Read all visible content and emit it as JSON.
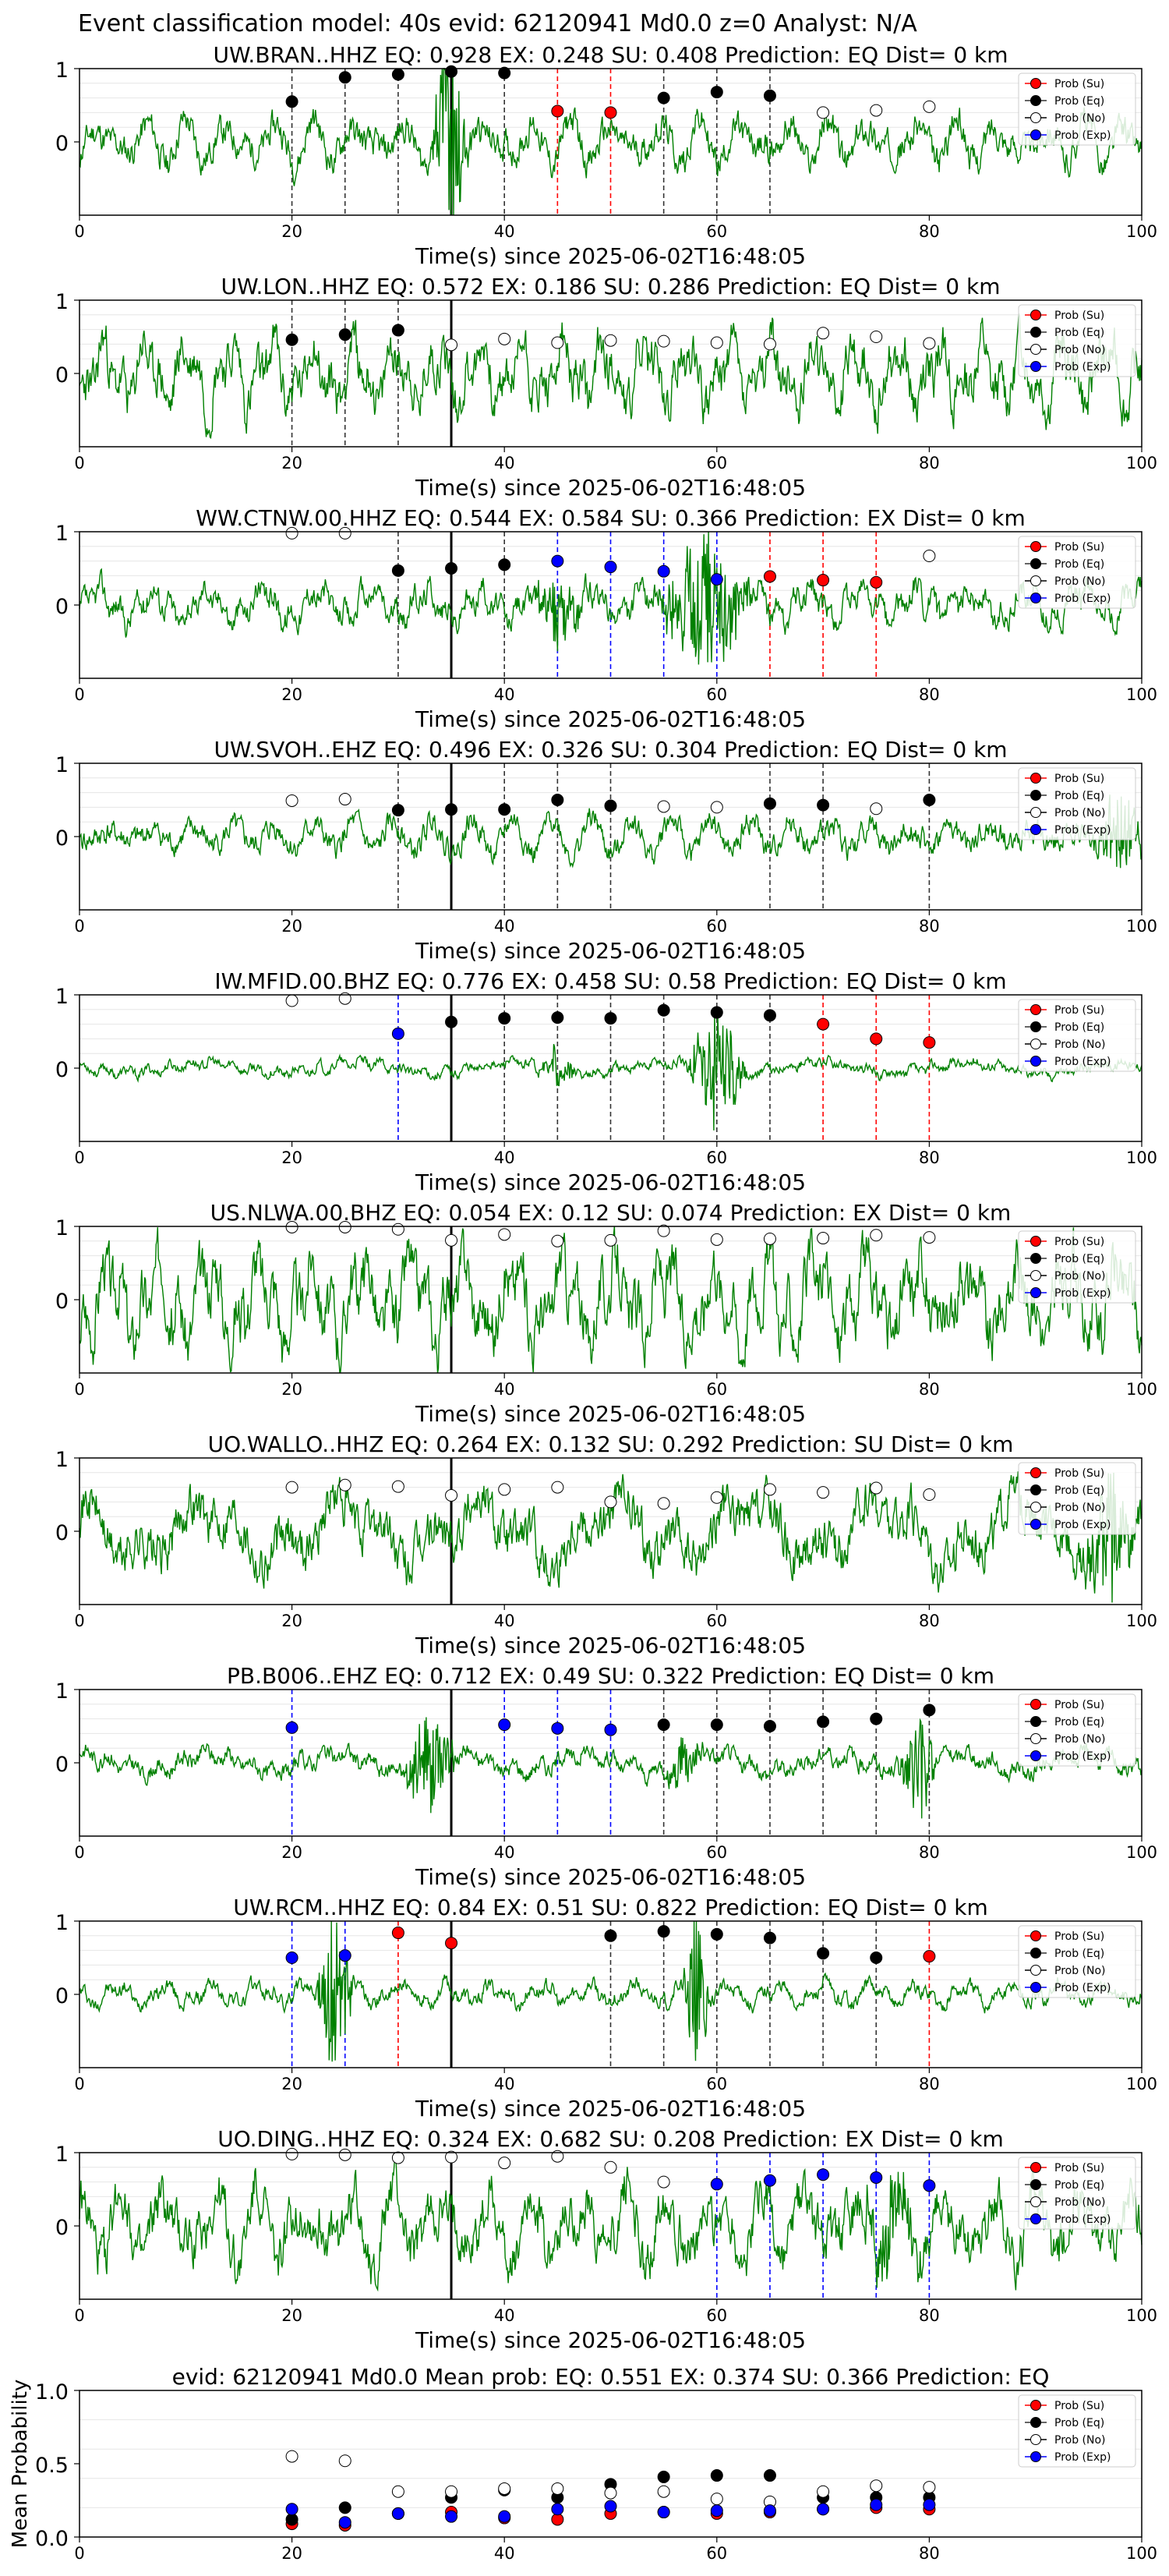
{
  "figure_title": "Event classification model: 40s evid: 62120941 Md0.0 z=0 Analyst: N/A",
  "xlabel": "Time(s) since 2025-06-02T16:48:05",
  "legend": [
    "Prob (Su)",
    "Prob (Eq)",
    "Prob (No)",
    "Prob (Exp)"
  ],
  "colors": {
    "su": "#ff0000",
    "eq": "#000000",
    "no": "#ffffff",
    "exp": "#0000ff",
    "trace": "#008000",
    "grid": "#e6e6e6"
  },
  "chart_data": [
    {
      "type": "line",
      "title": "UW.BRAN..HHZ   EQ: 0.928  EX: 0.248  SU: 0.408   Prediction: EQ    Dist= 0 km",
      "xlim": [
        0,
        100
      ],
      "ylim": [
        -1,
        1
      ],
      "xticks": [
        0,
        20,
        40,
        60,
        80,
        100
      ],
      "yticks": [
        1,
        0
      ],
      "origin": 35,
      "amp": 0.35,
      "seed": 11,
      "bursts": [
        [
          35,
          2,
          1.6
        ]
      ],
      "markers": [
        [
          20,
          "eq",
          0.55
        ],
        [
          25,
          "eq",
          0.88
        ],
        [
          30,
          "eq",
          0.92
        ],
        [
          35,
          "eq",
          0.96
        ],
        [
          40,
          "eq",
          0.94
        ],
        [
          45,
          "su",
          0.42
        ],
        [
          50,
          "su",
          0.4
        ],
        [
          55,
          "eq",
          0.6
        ],
        [
          60,
          "eq",
          0.68
        ],
        [
          65,
          "eq",
          0.63
        ],
        [
          70,
          "no",
          0.4
        ],
        [
          75,
          "no",
          0.43
        ],
        [
          80,
          "no",
          0.48
        ]
      ]
    },
    {
      "type": "line",
      "title": "UW.LON..HHZ   EQ: 0.572  EX: 0.186  SU: 0.286   Prediction: EQ    Dist= 0 km",
      "xlim": [
        0,
        100
      ],
      "ylim": [
        -1,
        1
      ],
      "xticks": [
        0,
        20,
        40,
        60,
        80,
        100
      ],
      "yticks": [
        1,
        0
      ],
      "origin": 35,
      "amp": 0.55,
      "seed": 23,
      "bursts": [],
      "markers": [
        [
          20,
          "eq",
          0.46
        ],
        [
          25,
          "eq",
          0.53
        ],
        [
          30,
          "eq",
          0.59
        ],
        [
          35,
          "no",
          0.39
        ],
        [
          40,
          "no",
          0.47
        ],
        [
          45,
          "no",
          0.42
        ],
        [
          50,
          "no",
          0.45
        ],
        [
          55,
          "no",
          0.44
        ],
        [
          60,
          "no",
          0.42
        ],
        [
          65,
          "no",
          0.4
        ],
        [
          70,
          "no",
          0.55
        ],
        [
          75,
          "no",
          0.5
        ],
        [
          80,
          "no",
          0.41
        ]
      ]
    },
    {
      "type": "line",
      "title": "WW.CTNW.00.HHZ   EQ: 0.544  EX: 0.584  SU: 0.366   Prediction: EX    Dist= 0 km",
      "xlim": [
        0,
        100
      ],
      "ylim": [
        -1,
        1
      ],
      "xticks": [
        0,
        20,
        40,
        60,
        80,
        100
      ],
      "yticks": [
        1,
        0
      ],
      "origin": 35,
      "amp": 0.3,
      "seed": 37,
      "bursts": [
        [
          59,
          5,
          1.0
        ],
        [
          45,
          3,
          0.5
        ]
      ],
      "markers": [
        [
          20,
          "no",
          0.98
        ],
        [
          25,
          "no",
          0.98
        ],
        [
          30,
          "eq",
          0.47
        ],
        [
          35,
          "eq",
          0.5
        ],
        [
          40,
          "eq",
          0.55
        ],
        [
          45,
          "exp",
          0.6
        ],
        [
          50,
          "exp",
          0.52
        ],
        [
          55,
          "exp",
          0.46
        ],
        [
          60,
          "exp",
          0.35
        ],
        [
          65,
          "su",
          0.39
        ],
        [
          70,
          "su",
          0.34
        ],
        [
          75,
          "su",
          0.31
        ],
        [
          80,
          "no",
          0.67
        ]
      ]
    },
    {
      "type": "line",
      "title": "UW.SVOH..EHZ   EQ: 0.496  EX: 0.326  SU: 0.304   Prediction: EQ    Dist= 0 km",
      "xlim": [
        0,
        100
      ],
      "ylim": [
        -1,
        1
      ],
      "xticks": [
        0,
        20,
        40,
        60,
        80,
        100
      ],
      "yticks": [
        1,
        0
      ],
      "origin": 35,
      "amp": 0.28,
      "seed": 41,
      "bursts": [
        [
          98,
          3,
          0.6
        ]
      ],
      "markers": [
        [
          20,
          "no",
          0.49
        ],
        [
          25,
          "no",
          0.51
        ],
        [
          30,
          "eq",
          0.36
        ],
        [
          35,
          "eq",
          0.37
        ],
        [
          40,
          "eq",
          0.37
        ],
        [
          45,
          "eq",
          0.5
        ],
        [
          50,
          "eq",
          0.42
        ],
        [
          55,
          "no",
          0.41
        ],
        [
          60,
          "no",
          0.4
        ],
        [
          65,
          "eq",
          0.45
        ],
        [
          70,
          "eq",
          0.43
        ],
        [
          75,
          "no",
          0.38
        ],
        [
          80,
          "eq",
          0.5
        ]
      ]
    },
    {
      "type": "line",
      "title": "IW.MFID.00.BHZ   EQ: 0.776  EX: 0.458  SU: 0.58   Prediction: EQ    Dist= 0 km",
      "xlim": [
        0,
        100
      ],
      "ylim": [
        -1,
        1
      ],
      "xticks": [
        0,
        20,
        40,
        60,
        80,
        100
      ],
      "yticks": [
        1,
        0
      ],
      "origin": 35,
      "amp": 0.12,
      "seed": 53,
      "bursts": [
        [
          60,
          3,
          1.0
        ],
        [
          45,
          2,
          0.3
        ]
      ],
      "markers": [
        [
          20,
          "no",
          0.92
        ],
        [
          25,
          "no",
          0.95
        ],
        [
          30,
          "exp",
          0.47
        ],
        [
          35,
          "eq",
          0.63
        ],
        [
          40,
          "eq",
          0.68
        ],
        [
          45,
          "eq",
          0.69
        ],
        [
          50,
          "eq",
          0.68
        ],
        [
          55,
          "eq",
          0.79
        ],
        [
          60,
          "eq",
          0.76
        ],
        [
          65,
          "eq",
          0.72
        ],
        [
          70,
          "su",
          0.6
        ],
        [
          75,
          "su",
          0.4
        ],
        [
          80,
          "su",
          0.35
        ]
      ]
    },
    {
      "type": "line",
      "title": "US.NLWA.00.BHZ   EQ: 0.054  EX: 0.12  SU: 0.074   Prediction: EX    Dist= 0 km",
      "xlim": [
        0,
        100
      ],
      "ylim": [
        -1,
        1
      ],
      "xticks": [
        0,
        20,
        40,
        60,
        80,
        100
      ],
      "yticks": [
        1,
        0
      ],
      "origin": 35,
      "amp": 0.7,
      "seed": 67,
      "bursts": [],
      "markers": [
        [
          20,
          "no",
          0.99
        ],
        [
          25,
          "no",
          0.99
        ],
        [
          30,
          "no",
          0.96
        ],
        [
          35,
          "no",
          0.81
        ],
        [
          40,
          "no",
          0.89
        ],
        [
          45,
          "no",
          0.8
        ],
        [
          50,
          "no",
          0.81
        ],
        [
          55,
          "no",
          0.94
        ],
        [
          60,
          "no",
          0.82
        ],
        [
          65,
          "no",
          0.83
        ],
        [
          70,
          "no",
          0.84
        ],
        [
          75,
          "no",
          0.88
        ],
        [
          80,
          "no",
          0.85
        ]
      ]
    },
    {
      "type": "line",
      "title": "UO.WALLO..HHZ   EQ: 0.264  EX: 0.132  SU: 0.292   Prediction: SU    Dist= 0 km",
      "xlim": [
        0,
        100
      ],
      "ylim": [
        -1,
        1
      ],
      "xticks": [
        0,
        20,
        40,
        60,
        80,
        100
      ],
      "yticks": [
        1,
        0
      ],
      "origin": 35,
      "amp": 0.55,
      "seed": 71,
      "bursts": [
        [
          97,
          3,
          0.9
        ]
      ],
      "markers": [
        [
          20,
          "no",
          0.6
        ],
        [
          25,
          "no",
          0.63
        ],
        [
          30,
          "no",
          0.61
        ],
        [
          35,
          "no",
          0.49
        ],
        [
          40,
          "no",
          0.57
        ],
        [
          45,
          "no",
          0.6
        ],
        [
          50,
          "no",
          0.4
        ],
        [
          55,
          "no",
          0.38
        ],
        [
          60,
          "no",
          0.46
        ],
        [
          65,
          "no",
          0.57
        ],
        [
          70,
          "no",
          0.53
        ],
        [
          75,
          "no",
          0.59
        ],
        [
          80,
          "no",
          0.5
        ]
      ]
    },
    {
      "type": "line",
      "title": "PB.B006..EHZ   EQ: 0.712  EX: 0.49  SU: 0.322   Prediction: EQ    Dist= 0 km",
      "xlim": [
        0,
        100
      ],
      "ylim": [
        -1,
        1
      ],
      "xticks": [
        0,
        20,
        40,
        60,
        80,
        100
      ],
      "yticks": [
        1,
        0
      ],
      "origin": 35,
      "amp": 0.2,
      "seed": 83,
      "bursts": [
        [
          33,
          3,
          0.7
        ],
        [
          79,
          2,
          0.9
        ],
        [
          57,
          2,
          0.4
        ]
      ],
      "markers": [
        [
          20,
          "exp",
          0.48
        ],
        [
          25,
          "none",
          0
        ],
        [
          30,
          "none",
          0
        ],
        [
          35,
          "none",
          0
        ],
        [
          40,
          "exp",
          0.52
        ],
        [
          45,
          "exp",
          0.47
        ],
        [
          50,
          "exp",
          0.45
        ],
        [
          55,
          "eq",
          0.52
        ],
        [
          60,
          "eq",
          0.52
        ],
        [
          65,
          "eq",
          0.5
        ],
        [
          70,
          "eq",
          0.56
        ],
        [
          75,
          "eq",
          0.6
        ],
        [
          80,
          "eq",
          0.72
        ]
      ]
    },
    {
      "type": "line",
      "title": "UW.RCM..HHZ   EQ: 0.84  EX: 0.51  SU: 0.822   Prediction: EQ    Dist= 0 km",
      "xlim": [
        0,
        100
      ],
      "ylim": [
        -1,
        1
      ],
      "xticks": [
        0,
        20,
        40,
        60,
        80,
        100
      ],
      "yticks": [
        1,
        0
      ],
      "origin": 35,
      "amp": 0.18,
      "seed": 97,
      "bursts": [
        [
          24,
          2,
          1.3
        ],
        [
          58,
          1.5,
          1.1
        ]
      ],
      "markers": [
        [
          20,
          "exp",
          0.5
        ],
        [
          25,
          "exp",
          0.53
        ],
        [
          30,
          "su",
          0.84
        ],
        [
          35,
          "su",
          0.7
        ],
        [
          40,
          "none",
          0
        ],
        [
          45,
          "none",
          0
        ],
        [
          50,
          "eq",
          0.8
        ],
        [
          55,
          "eq",
          0.86
        ],
        [
          60,
          "eq",
          0.82
        ],
        [
          65,
          "eq",
          0.77
        ],
        [
          70,
          "eq",
          0.56
        ],
        [
          75,
          "eq",
          0.5
        ],
        [
          80,
          "su",
          0.52
        ]
      ]
    },
    {
      "type": "line",
      "title": "UO.DING..HHZ   EQ: 0.324  EX: 0.682  SU: 0.208   Prediction: EX    Dist= 0 km",
      "xlim": [
        0,
        100
      ],
      "ylim": [
        -1,
        1
      ],
      "xticks": [
        0,
        20,
        40,
        60,
        80,
        100
      ],
      "yticks": [
        1,
        0
      ],
      "origin": 35,
      "amp": 0.6,
      "seed": 109,
      "bursts": [
        [
          76,
          4,
          0.5
        ]
      ],
      "markers": [
        [
          20,
          "no",
          0.98
        ],
        [
          25,
          "no",
          0.97
        ],
        [
          30,
          "no",
          0.93
        ],
        [
          35,
          "no",
          0.94
        ],
        [
          40,
          "no",
          0.86
        ],
        [
          45,
          "no",
          0.95
        ],
        [
          50,
          "no",
          0.8
        ],
        [
          55,
          "no",
          0.6
        ],
        [
          60,
          "exp",
          0.57
        ],
        [
          65,
          "exp",
          0.62
        ],
        [
          70,
          "exp",
          0.7
        ],
        [
          75,
          "exp",
          0.66
        ],
        [
          80,
          "exp",
          0.55
        ]
      ]
    },
    {
      "type": "scatter",
      "title": "evid: 62120941   Md0.0   Mean prob:   EQ: 0.551  EX: 0.374  SU: 0.366   Prediction: EQ",
      "ylabel": "Mean Probability",
      "xlim": [
        0,
        100
      ],
      "ylim": [
        0,
        1
      ],
      "xticks": [
        0,
        20,
        40,
        60,
        80,
        100
      ],
      "yticks": [
        1.0,
        0.5,
        0.0
      ],
      "ytick_labels": [
        "1.0",
        "0.5",
        "0.0"
      ],
      "x": [
        20,
        25,
        30,
        35,
        40,
        45,
        50,
        55,
        60,
        65,
        70,
        75,
        80
      ],
      "series": [
        {
          "name": "Prob (Su)",
          "key": "su",
          "values": [
            0.09,
            0.08,
            0.16,
            0.17,
            0.13,
            0.12,
            0.16,
            0.17,
            0.16,
            0.17,
            0.19,
            0.2,
            0.19
          ]
        },
        {
          "name": "Prob (Eq)",
          "key": "eq",
          "values": [
            0.12,
            0.2,
            0.16,
            0.27,
            0.32,
            0.27,
            0.36,
            0.41,
            0.42,
            0.42,
            0.27,
            0.27,
            0.27
          ]
        },
        {
          "name": "Prob (No)",
          "key": "no",
          "values": [
            0.55,
            0.52,
            0.31,
            0.31,
            0.33,
            0.33,
            0.3,
            0.31,
            0.26,
            0.24,
            0.31,
            0.35,
            0.34
          ]
        },
        {
          "name": "Prob (Exp)",
          "key": "exp",
          "values": [
            0.19,
            0.1,
            0.16,
            0.14,
            0.14,
            0.19,
            0.21,
            0.17,
            0.18,
            0.18,
            0.19,
            0.22,
            0.22
          ]
        }
      ]
    }
  ]
}
